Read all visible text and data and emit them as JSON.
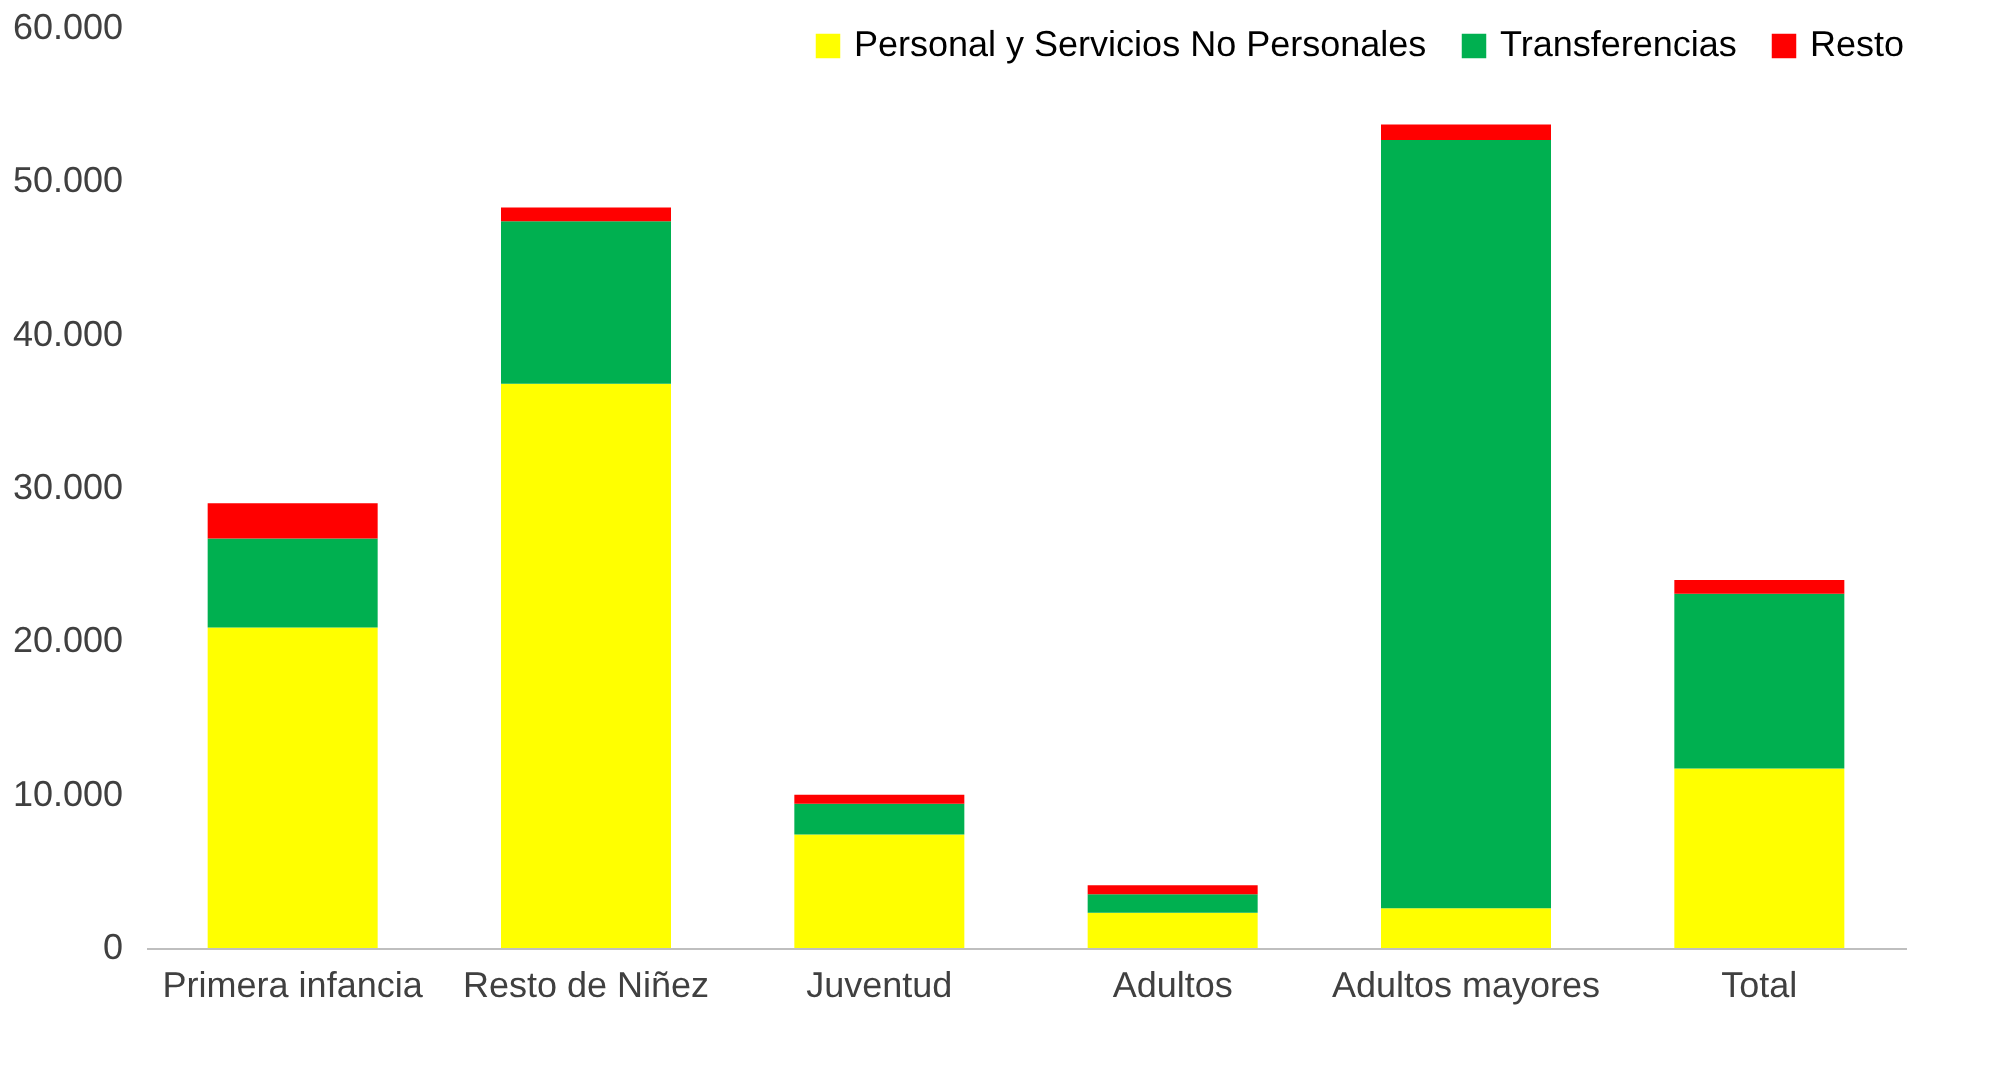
{
  "chart_data": {
    "type": "bar",
    "stacked": true,
    "categories": [
      "Primera infancia",
      "Resto de Niñez",
      "Juventud",
      "Adultos",
      "Adultos mayores",
      "Total"
    ],
    "series": [
      {
        "name": "Personal y Servicios No Personales",
        "color": "#ffff00",
        "values": [
          20900,
          36800,
          7400,
          2300,
          2600,
          11700
        ]
      },
      {
        "name": "Transferencias",
        "color": "#00b050",
        "values": [
          5800,
          10600,
          2000,
          1200,
          50100,
          11400
        ]
      },
      {
        "name": "Resto",
        "color": "#ff0000",
        "values": [
          2300,
          900,
          600,
          600,
          1000,
          900
        ]
      }
    ],
    "ylim": [
      0,
      60000
    ],
    "yticks": [
      {
        "value": 0,
        "label": "0"
      },
      {
        "value": 10000,
        "label": "10.000"
      },
      {
        "value": 20000,
        "label": "20.000"
      },
      {
        "value": 30000,
        "label": "30.000"
      },
      {
        "value": 40000,
        "label": "40.000"
      },
      {
        "value": 50000,
        "label": "50.000"
      },
      {
        "value": 60000,
        "label": "60.000"
      }
    ],
    "grid": false,
    "legend": "top right"
  }
}
